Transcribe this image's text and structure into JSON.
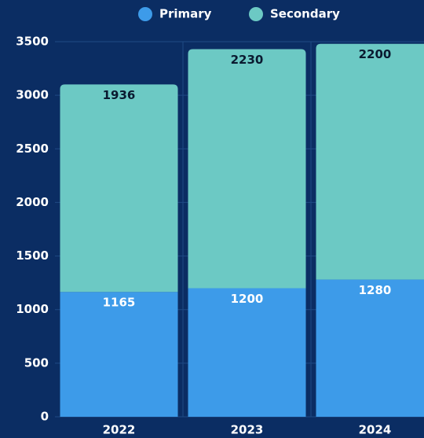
{
  "chart_data": {
    "type": "bar",
    "stacked": true,
    "categories": [
      "2022",
      "2023",
      "2024"
    ],
    "series": [
      {
        "name": "Primary",
        "color": "#3d9be9",
        "values": [
          1165,
          1200,
          1280
        ]
      },
      {
        "name": "Secondary",
        "color": "#6cc9c4",
        "values": [
          1936,
          2230,
          2200
        ]
      }
    ],
    "ylim": [
      0,
      3500
    ],
    "yticks": [
      0,
      500,
      1000,
      1500,
      2000,
      2500,
      3000,
      3500
    ],
    "grid": true,
    "legend": "top"
  }
}
